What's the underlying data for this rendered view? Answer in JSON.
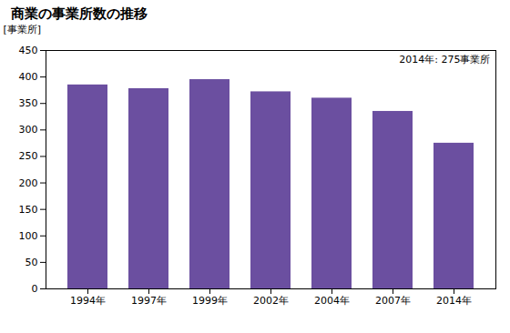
{
  "chart_data": {
    "type": "bar",
    "title": "商業の事業所数の推移",
    "ylabel": "[事業所]",
    "annotation": "2014年: 275事業所",
    "categories": [
      "1994年",
      "1997年",
      "1999年",
      "2002年",
      "2004年",
      "2007年",
      "2014年"
    ],
    "values": [
      385,
      378,
      395,
      372,
      360,
      335,
      275
    ],
    "color": "#6B4FA0",
    "ylim": [
      0,
      450
    ],
    "yticks": [
      0,
      50,
      100,
      150,
      200,
      250,
      300,
      350,
      400,
      450
    ],
    "grid": false
  }
}
